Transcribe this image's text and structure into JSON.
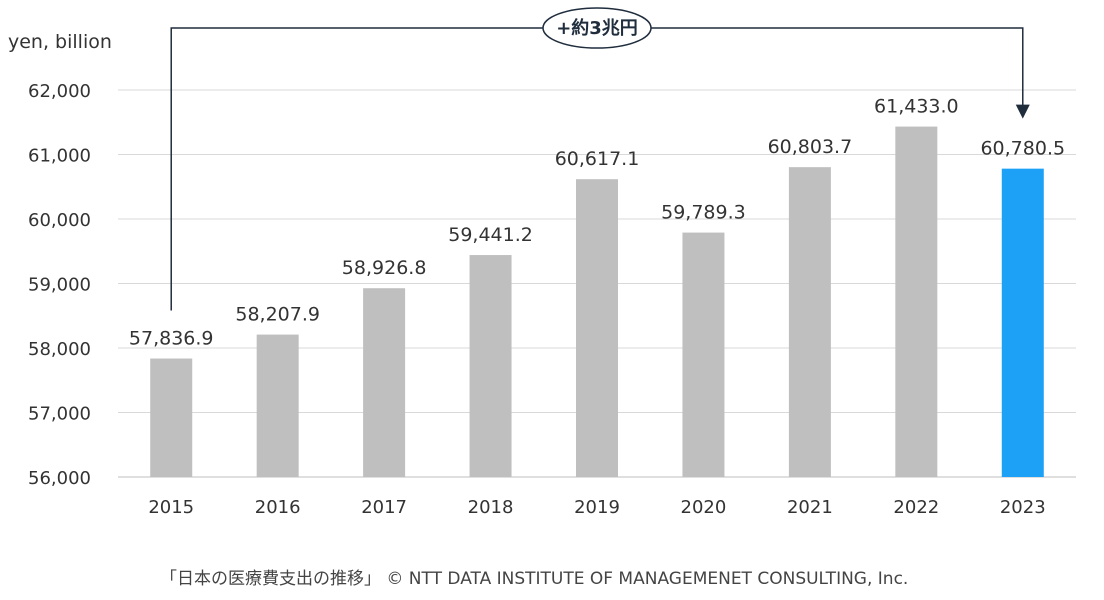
{
  "chart_data": {
    "type": "bar",
    "ylabel": "yen, billion",
    "xlabel": "",
    "title": "",
    "categories": [
      "2015",
      "2016",
      "2017",
      "2018",
      "2019",
      "2020",
      "2021",
      "2022",
      "2023"
    ],
    "values": [
      57836.9,
      58207.9,
      58926.8,
      59441.2,
      60617.1,
      59789.3,
      60803.7,
      61433.0,
      60780.5
    ],
    "value_labels": [
      "57,836.9",
      "58,207.9",
      "58,926.8",
      "59,441.2",
      "60,617.1",
      "59,789.3",
      "60,803.7",
      "61,433.0",
      "60,780.5"
    ],
    "ylim": [
      56000,
      62000
    ],
    "yticks": [
      56000,
      57000,
      58000,
      59000,
      60000,
      61000,
      62000
    ],
    "ytick_labels": [
      "56,000",
      "57,000",
      "58,000",
      "59,000",
      "60,000",
      "61,000",
      "62,000"
    ],
    "grid": true,
    "bar_color": "#bfbfbf",
    "highlight_color": "#1ca1f7",
    "highlight_index": 8,
    "annotation": {
      "text": "+約3兆円",
      "from_category": "2015",
      "to_category": "2023"
    }
  },
  "footer": "「日本の医療費支出の推移」 © NTT DATA INSTITUTE OF MANAGEMENET CONSULTING, Inc."
}
